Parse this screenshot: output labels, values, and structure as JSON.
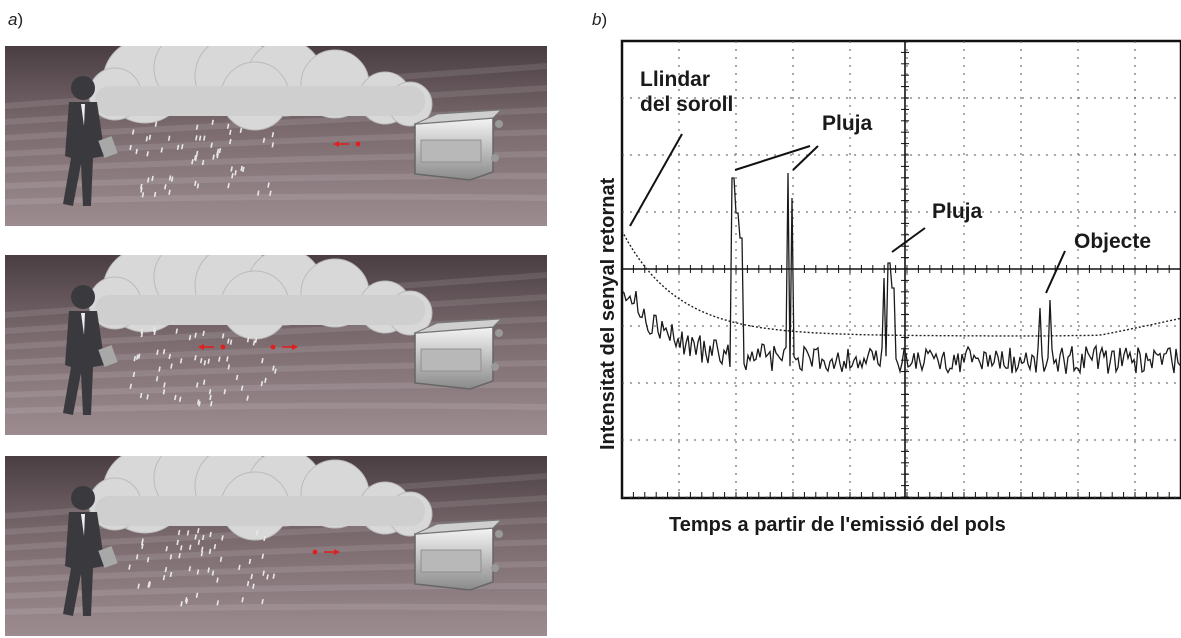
{
  "panel_a": {
    "label_letter": "a",
    "label_paren": ")"
  },
  "panel_b": {
    "label_letter": "b",
    "label_paren": ")"
  },
  "scenes": [
    {
      "arrows": [
        {
          "dir": "left"
        }
      ]
    },
    {
      "arrows": [
        {
          "dir": "left"
        },
        {
          "dir": "right"
        }
      ]
    },
    {
      "arrows": [
        {
          "dir": "right"
        }
      ]
    }
  ],
  "chart": {
    "ylabel": "Intensitat del senyal retornat",
    "xlabel": "Temps a partir de l'emissió del pols",
    "annotations": {
      "noise_line1": "Llindar",
      "noise_line2": "del soroll",
      "rain1": "Pluja",
      "rain2": "Pluja",
      "object": "Objecte"
    },
    "colors": {
      "trace": "#1a1a1a",
      "grid": "#444444",
      "arrow": "#e02020"
    }
  }
}
